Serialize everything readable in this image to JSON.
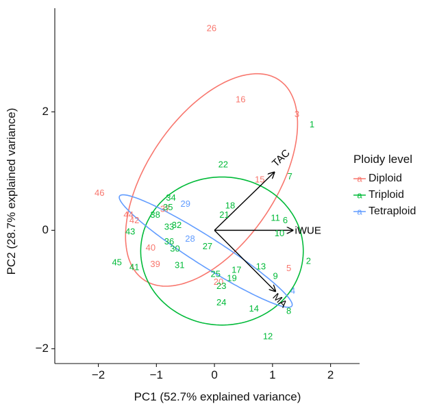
{
  "chart_data": {
    "type": "scatter",
    "title": "",
    "xlabel": "PC1 (52.7% explained variance)",
    "ylabel": "PC2 (28.7% explained variance)",
    "xlim": [
      -2.75,
      2.5
    ],
    "ylim": [
      -2.25,
      3.75
    ],
    "xticks": [
      -2,
      -1,
      0,
      1,
      2
    ],
    "yticks": [
      -2,
      0,
      2
    ],
    "xtick_labels": [
      "−2",
      "−1",
      "0",
      "1",
      "2"
    ],
    "ytick_labels": [
      "−2",
      "0",
      "2"
    ],
    "grid": false,
    "legend": {
      "title": "Ploidy level",
      "placement": "right",
      "entries": [
        {
          "name": "Diploid",
          "color": "#F8766D",
          "glyph": "a"
        },
        {
          "name": "Triploid",
          "color": "#00BA38",
          "glyph": "a"
        },
        {
          "name": "Tetraploid",
          "color": "#619CFF",
          "glyph": "a"
        }
      ]
    },
    "series": [
      {
        "name": "Diploid",
        "color": "#F8766D",
        "points": [
          {
            "label": "26",
            "x": -0.05,
            "y": 3.4
          },
          {
            "label": "16",
            "x": 0.45,
            "y": 2.2
          },
          {
            "label": "3",
            "x": 1.42,
            "y": 1.95
          },
          {
            "label": "15",
            "x": 0.78,
            "y": 0.85
          },
          {
            "label": "46",
            "x": -1.98,
            "y": 0.62
          },
          {
            "label": "44",
            "x": -1.48,
            "y": 0.25
          },
          {
            "label": "42",
            "x": -1.38,
            "y": 0.16
          },
          {
            "label": "37",
            "x": -0.85,
            "y": 0.35
          },
          {
            "label": "40",
            "x": -1.1,
            "y": -0.3
          },
          {
            "label": "39",
            "x": -1.02,
            "y": -0.58
          },
          {
            "label": "5",
            "x": 1.28,
            "y": -0.65
          },
          {
            "label": "20",
            "x": 0.07,
            "y": -0.88
          }
        ],
        "ellipse": {
          "cx": -0.05,
          "cy": 0.85,
          "rx": 2.05,
          "ry": 1.1,
          "angle_deg": 55
        }
      },
      {
        "name": "Triploid",
        "color": "#00BA38",
        "points": [
          {
            "label": "1",
            "x": 1.68,
            "y": 1.78
          },
          {
            "label": "22",
            "x": 0.15,
            "y": 1.1
          },
          {
            "label": "7",
            "x": 1.3,
            "y": 0.9
          },
          {
            "label": "34",
            "x": -0.75,
            "y": 0.54
          },
          {
            "label": "35",
            "x": -0.8,
            "y": 0.38
          },
          {
            "label": "18",
            "x": 0.27,
            "y": 0.41
          },
          {
            "label": "21",
            "x": 0.17,
            "y": 0.25
          },
          {
            "label": "38",
            "x": -1.02,
            "y": 0.25
          },
          {
            "label": "11",
            "x": 1.05,
            "y": 0.2
          },
          {
            "label": "6",
            "x": 1.22,
            "y": 0.16
          },
          {
            "label": "33",
            "x": -0.78,
            "y": 0.05
          },
          {
            "label": "32",
            "x": -0.65,
            "y": 0.08
          },
          {
            "label": "43",
            "x": -1.45,
            "y": -0.03
          },
          {
            "label": "10",
            "x": 1.12,
            "y": -0.06
          },
          {
            "label": "36",
            "x": -0.78,
            "y": -0.2
          },
          {
            "label": "30",
            "x": -0.68,
            "y": -0.32
          },
          {
            "label": "27",
            "x": -0.12,
            "y": -0.28
          },
          {
            "label": "2",
            "x": 1.62,
            "y": -0.53
          },
          {
            "label": "45",
            "x": -1.68,
            "y": -0.55
          },
          {
            "label": "41",
            "x": -1.38,
            "y": -0.63
          },
          {
            "label": "31",
            "x": -0.6,
            "y": -0.6
          },
          {
            "label": "17",
            "x": 0.38,
            "y": -0.68
          },
          {
            "label": "13",
            "x": 0.8,
            "y": -0.62
          },
          {
            "label": "25",
            "x": 0.02,
            "y": -0.75
          },
          {
            "label": "19",
            "x": 0.3,
            "y": -0.82
          },
          {
            "label": "9",
            "x": 1.05,
            "y": -0.78
          },
          {
            "label": "23",
            "x": 0.12,
            "y": -0.95
          },
          {
            "label": "24",
            "x": 0.12,
            "y": -1.23
          },
          {
            "label": "14",
            "x": 0.68,
            "y": -1.33
          },
          {
            "label": "8",
            "x": 1.28,
            "y": -1.37
          },
          {
            "label": "12",
            "x": 0.92,
            "y": -1.8
          }
        ],
        "ellipse": {
          "cx": 0.13,
          "cy": -0.35,
          "rx": 1.4,
          "ry": 1.25,
          "angle_deg": 0
        }
      },
      {
        "name": "Tetraploid",
        "color": "#619CFF",
        "points": [
          {
            "label": "29",
            "x": -0.5,
            "y": 0.44
          },
          {
            "label": "28",
            "x": -0.42,
            "y": -0.15
          },
          {
            "label": "4",
            "x": 1.35,
            "y": -1.03
          }
        ],
        "ellipse": {
          "cx": -0.15,
          "cy": -0.35,
          "rx": 1.75,
          "ry": 0.24,
          "angle_deg": -32
        }
      }
    ],
    "loadings": [
      {
        "label": "TAC",
        "x": 1.03,
        "y": 0.98
      },
      {
        "label": "iWUE",
        "x": 1.35,
        "y": 0.0
      },
      {
        "label": "MA",
        "x": 1.05,
        "y": -1.03
      }
    ]
  }
}
